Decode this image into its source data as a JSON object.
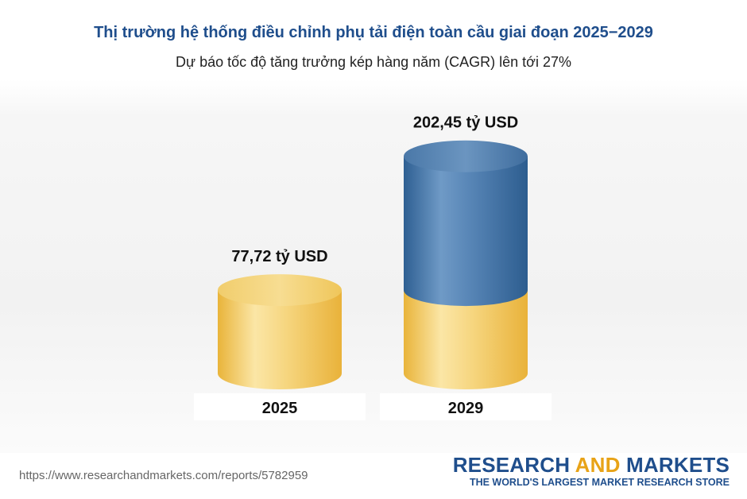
{
  "chart_data": {
    "type": "bar",
    "title": "Thị trường hệ thống điều chỉnh phụ tải điện toàn cầu giai đoạn 2025−2029",
    "subtitle": "Dự báo tốc độ tăng trưởng kép hàng năm (CAGR) lên tới 27%",
    "categories": [
      "2025",
      "2029"
    ],
    "values": [
      77.72,
      202.45
    ],
    "value_labels": [
      "77,72 tỷ USD",
      "202,45 tỷ USD"
    ],
    "unit": "tỷ USD",
    "colors": {
      "base": "#f3c64f",
      "increment": "#3f74a8"
    }
  },
  "footer": {
    "url": "https://www.researchandmarkets.com/reports/5782959",
    "brand_part1": "RESEARCH ",
    "brand_part2": "AND",
    "brand_part3": " MARKETS",
    "tagline": "THE WORLD'S LARGEST MARKET RESEARCH STORE"
  }
}
